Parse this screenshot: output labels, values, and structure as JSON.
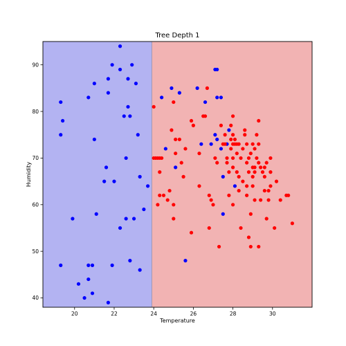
{
  "chart_data": {
    "type": "scatter",
    "title": "Tree Depth 1",
    "xlabel": "Temperature",
    "ylabel": "Humidity",
    "xlim": [
      18.4,
      32.0
    ],
    "ylim": [
      38.0,
      95.0
    ],
    "xticks": [
      20,
      22,
      24,
      26,
      28,
      30
    ],
    "yticks": [
      40,
      50,
      60,
      70,
      80,
      90
    ],
    "split": 23.9,
    "regions": [
      {
        "name": "left-region",
        "x_from": 18.4,
        "x_to": 23.9,
        "color": "#b3b3f2"
      },
      {
        "name": "right-region",
        "x_from": 23.9,
        "x_to": 32.0,
        "color": "#f2b3b3"
      }
    ],
    "series": [
      {
        "color": "#0000ff",
        "points": [
          [
            19.3,
            82
          ],
          [
            19.4,
            78
          ],
          [
            19.3,
            75
          ],
          [
            19.3,
            47
          ],
          [
            19.9,
            57
          ],
          [
            20.2,
            43
          ],
          [
            20.5,
            40
          ],
          [
            20.7,
            44
          ],
          [
            20.7,
            47
          ],
          [
            20.9,
            47
          ],
          [
            20.9,
            41
          ],
          [
            20.7,
            83
          ],
          [
            21.0,
            86
          ],
          [
            21.0,
            74
          ],
          [
            21.1,
            58
          ],
          [
            21.5,
            65
          ],
          [
            21.6,
            68
          ],
          [
            21.7,
            84
          ],
          [
            21.7,
            87
          ],
          [
            21.7,
            39
          ],
          [
            21.9,
            90
          ],
          [
            22.0,
            65
          ],
          [
            21.9,
            47
          ],
          [
            22.3,
            94
          ],
          [
            22.3,
            89
          ],
          [
            22.3,
            55
          ],
          [
            22.5,
            79
          ],
          [
            22.6,
            70
          ],
          [
            22.6,
            57
          ],
          [
            22.7,
            81
          ],
          [
            22.7,
            87
          ],
          [
            22.8,
            79
          ],
          [
            22.8,
            48
          ],
          [
            22.9,
            90
          ],
          [
            23.0,
            57
          ],
          [
            23.1,
            86
          ],
          [
            23.2,
            75
          ],
          [
            23.3,
            66
          ],
          [
            23.3,
            46
          ],
          [
            23.5,
            59
          ],
          [
            23.7,
            64
          ],
          [
            25.1,
            68
          ],
          [
            25.6,
            48
          ],
          [
            27.1,
            89
          ],
          [
            27.2,
            89
          ],
          [
            27.5,
            66
          ],
          [
            27.5,
            58
          ],
          [
            28.1,
            64
          ],
          [
            24.4,
            83
          ],
          [
            24.9,
            85
          ],
          [
            25.3,
            84
          ],
          [
            24.6,
            72
          ],
          [
            26.2,
            85
          ],
          [
            26.6,
            82
          ],
          [
            27.2,
            83
          ],
          [
            27.4,
            83
          ],
          [
            26.4,
            73
          ],
          [
            26.9,
            73
          ],
          [
            27.1,
            75
          ],
          [
            27.2,
            74
          ],
          [
            27.4,
            72
          ],
          [
            27.7,
            73
          ],
          [
            27.8,
            76
          ]
        ]
      },
      {
        "color": "#ff0000",
        "points": [
          [
            24.0,
            81
          ],
          [
            24.0,
            70
          ],
          [
            24.1,
            70
          ],
          [
            24.2,
            70
          ],
          [
            24.3,
            70
          ],
          [
            24.4,
            70
          ],
          [
            24.3,
            67
          ],
          [
            24.3,
            62
          ],
          [
            24.2,
            60
          ],
          [
            24.5,
            62
          ],
          [
            24.8,
            63
          ],
          [
            24.7,
            61
          ],
          [
            24.9,
            76
          ],
          [
            25.0,
            82
          ],
          [
            25.1,
            74
          ],
          [
            25.1,
            71
          ],
          [
            25.0,
            60
          ],
          [
            25.0,
            57
          ],
          [
            25.3,
            74
          ],
          [
            25.4,
            69
          ],
          [
            25.5,
            66
          ],
          [
            25.6,
            72
          ],
          [
            25.9,
            78
          ],
          [
            25.9,
            54
          ],
          [
            26.0,
            77
          ],
          [
            26.3,
            71
          ],
          [
            26.3,
            64
          ],
          [
            26.5,
            79
          ],
          [
            26.6,
            79
          ],
          [
            26.7,
            85
          ],
          [
            26.8,
            62
          ],
          [
            26.8,
            55
          ],
          [
            26.9,
            61
          ],
          [
            27.0,
            60
          ],
          [
            27.1,
            70
          ],
          [
            27.2,
            69
          ],
          [
            27.3,
            51
          ],
          [
            27.4,
            77
          ],
          [
            27.5,
            73
          ],
          [
            27.6,
            75
          ],
          [
            27.6,
            73
          ],
          [
            27.7,
            70
          ],
          [
            27.7,
            69
          ],
          [
            27.8,
            67
          ],
          [
            27.8,
            62
          ],
          [
            27.9,
            77
          ],
          [
            27.9,
            74
          ],
          [
            27.9,
            72
          ],
          [
            28.0,
            79
          ],
          [
            28.0,
            75
          ],
          [
            28.0,
            73
          ],
          [
            28.0,
            70
          ],
          [
            28.0,
            68
          ],
          [
            28.0,
            60
          ],
          [
            28.1,
            74
          ],
          [
            28.1,
            73
          ],
          [
            28.2,
            73
          ],
          [
            28.2,
            71
          ],
          [
            28.2,
            67
          ],
          [
            28.3,
            73
          ],
          [
            28.3,
            66
          ],
          [
            28.3,
            63
          ],
          [
            28.4,
            70
          ],
          [
            28.4,
            55
          ],
          [
            28.5,
            72
          ],
          [
            28.5,
            65
          ],
          [
            28.6,
            76
          ],
          [
            28.6,
            75
          ],
          [
            28.7,
            73
          ],
          [
            28.7,
            69
          ],
          [
            28.7,
            64
          ],
          [
            28.7,
            62
          ],
          [
            28.8,
            70
          ],
          [
            28.8,
            67
          ],
          [
            28.8,
            53
          ],
          [
            28.9,
            71
          ],
          [
            28.9,
            58
          ],
          [
            28.9,
            51
          ],
          [
            29.0,
            73
          ],
          [
            29.0,
            68
          ],
          [
            29.0,
            66
          ],
          [
            29.0,
            64
          ],
          [
            29.1,
            72
          ],
          [
            29.1,
            68
          ],
          [
            29.1,
            67
          ],
          [
            29.1,
            61
          ],
          [
            29.2,
            75
          ],
          [
            29.2,
            70
          ],
          [
            29.3,
            78
          ],
          [
            29.3,
            73
          ],
          [
            29.3,
            69
          ],
          [
            29.3,
            51
          ],
          [
            29.4,
            68
          ],
          [
            29.4,
            61
          ],
          [
            29.5,
            67
          ],
          [
            29.6,
            68
          ],
          [
            29.6,
            66
          ],
          [
            29.6,
            63
          ],
          [
            29.7,
            69
          ],
          [
            29.7,
            57
          ],
          [
            29.8,
            63
          ],
          [
            29.8,
            61
          ],
          [
            29.9,
            70
          ],
          [
            29.9,
            67
          ],
          [
            29.9,
            64
          ],
          [
            30.1,
            55
          ],
          [
            30.2,
            65
          ],
          [
            30.4,
            61
          ],
          [
            30.7,
            62
          ],
          [
            30.8,
            62
          ],
          [
            31.0,
            56
          ]
        ]
      }
    ]
  }
}
